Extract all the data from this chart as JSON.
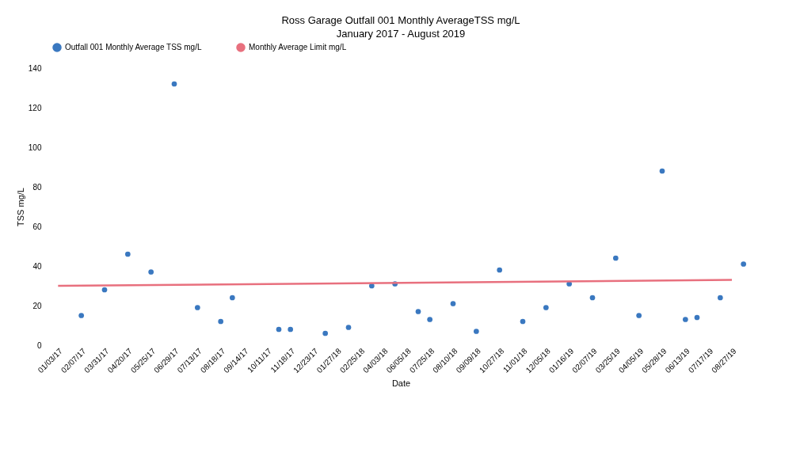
{
  "chart_data": {
    "type": "scatter",
    "title": "Ross Garage Outfall 001 Monthly AverageTSS mg/L",
    "subtitle": "January 2017 - August 2019",
    "xlabel": "Date",
    "ylabel": "TSS mg/L",
    "categories": [
      "01/03/17",
      null,
      "02/07/17",
      null,
      "03/31/17",
      null,
      "04/20/17",
      null,
      "05/25/17",
      null,
      "06/29/17",
      null,
      "07/13/17",
      null,
      "08/18/17",
      null,
      "09/14/17",
      null,
      "10/11/17",
      null,
      "11/18/17",
      null,
      "12/23/17",
      null,
      "01/27/18",
      null,
      "02/25/18",
      null,
      "04/03/18",
      null,
      "06/05/18",
      null,
      "07/25/18",
      null,
      "08/10/18",
      null,
      "09/09/18",
      null,
      "10/27/18",
      null,
      "11/01/18",
      null,
      "12/05/18",
      null,
      "01/16/19",
      null,
      "02/07/19",
      null,
      "03/25/19",
      null,
      "04/05/19",
      null,
      "05/28/19",
      null,
      "06/13/19",
      null,
      "07/17/19",
      null,
      "08/27/19",
      null
    ],
    "series": [
      {
        "name": "Outfall 001 Monthly Average TSS mg/L",
        "marker": "circle",
        "color": "#3a78c0",
        "values": [
          null,
          null,
          15,
          null,
          28,
          null,
          46,
          null,
          37,
          null,
          132,
          null,
          19,
          null,
          12,
          24,
          null,
          null,
          null,
          8,
          8,
          null,
          null,
          6,
          null,
          9,
          null,
          30,
          null,
          31,
          null,
          17,
          13,
          null,
          21,
          null,
          7,
          null,
          38,
          null,
          12,
          null,
          19,
          null,
          31,
          null,
          24,
          null,
          44,
          null,
          15,
          null,
          88,
          null,
          13,
          14,
          null,
          24,
          null,
          41
        ]
      },
      {
        "name": "Monthly Average Limit mg/L",
        "type": "line",
        "color": "#e8707e",
        "x": [
          "01/03/17",
          "08/27/19"
        ],
        "values": [
          30,
          33
        ]
      }
    ],
    "ylim": [
      0,
      140
    ],
    "yticks": [
      0,
      20,
      40,
      60,
      80,
      100,
      120,
      140
    ],
    "grid": false,
    "legend": "top"
  }
}
